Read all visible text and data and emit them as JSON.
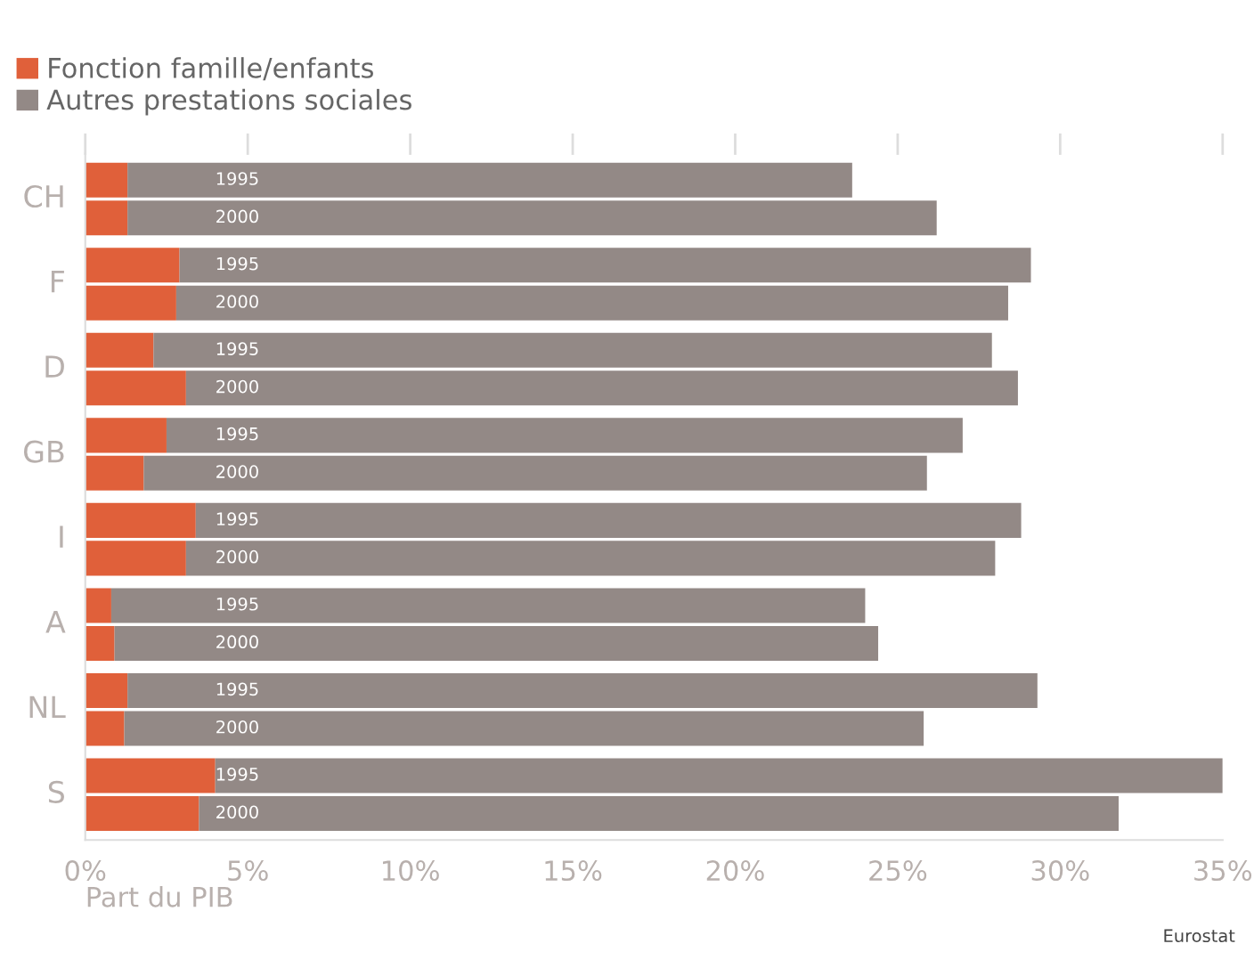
{
  "chart_data": {
    "type": "bar",
    "orientation": "horizontal",
    "stacked": true,
    "categories": [
      "1995",
      "2000",
      "1995",
      "2000",
      "1995",
      "2000",
      "1995",
      "2000",
      "1995",
      "2000",
      "1995",
      "2000",
      "1995",
      "2000",
      "1995",
      "2000"
    ],
    "series": [
      {
        "name": "Fonction famille/enfants",
        "color": "#e0603a",
        "values": [
          1.3,
          1.3,
          2.9,
          2.8,
          2.1,
          3.1,
          2.5,
          1.8,
          3.4,
          3.1,
          0.8,
          0.9,
          1.3,
          1.2,
          4.0,
          3.5
        ]
      },
      {
        "name": "Autres prestations sociales",
        "color": "#938986",
        "values": [
          22.3,
          24.9,
          26.2,
          25.6,
          25.8,
          25.6,
          24.5,
          24.1,
          25.4,
          24.9,
          23.2,
          23.5,
          28.0,
          24.6,
          31.0,
          28.3
        ]
      }
    ],
    "annotations": [
      "CH",
      "F",
      "D",
      "GB",
      "I",
      "A",
      "NL",
      "S",
      "Eurostat"
    ],
    "xlabel": "Part du PIB",
    "xlim": [
      0,
      35
    ],
    "xticks": [
      {
        "value": 0,
        "label": "0%"
      },
      {
        "value": 5,
        "label": "5%"
      },
      {
        "value": 10,
        "label": "10%"
      },
      {
        "value": 15,
        "label": "15%"
      },
      {
        "value": 20,
        "label": "20%"
      },
      {
        "value": 25,
        "label": "25%"
      },
      {
        "value": 30,
        "label": "30%"
      },
      {
        "value": 35,
        "label": "35%"
      }
    ],
    "grid": false,
    "legend": "top left"
  }
}
